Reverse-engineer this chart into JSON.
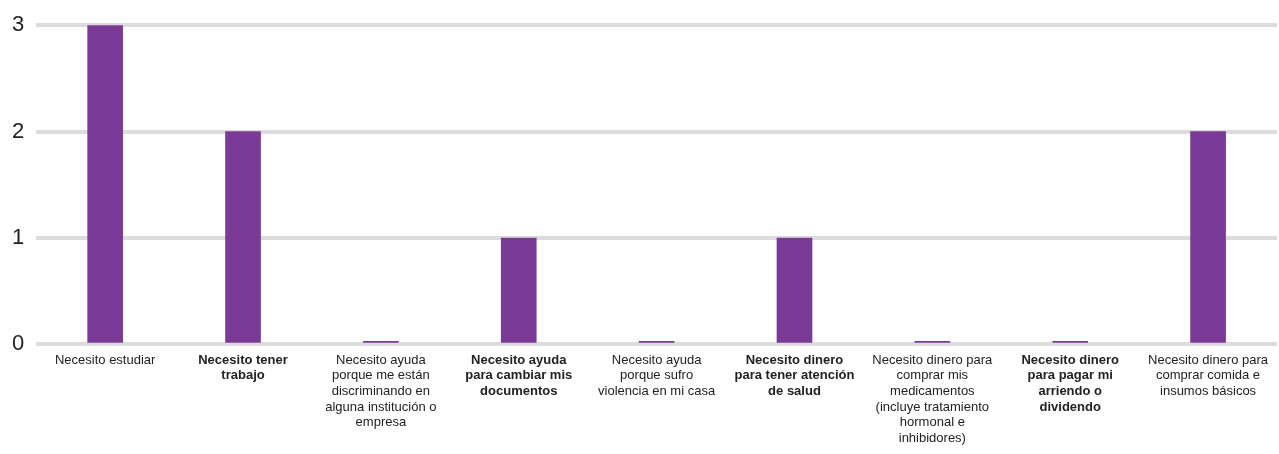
{
  "chart_data": {
    "type": "bar",
    "categories": [
      "Necesito estudiar",
      "Necesito tener trabajo",
      "Necesito ayuda porque me están discriminando en alguna institución o empresa",
      "Necesito ayuda para cambiar mis documentos",
      "Necesito ayuda porque sufro violencia en mi casa",
      "Necesito dinero para tener atención de salud",
      "Necesito dinero para comprar mis medicamentos (incluye tratamiento hormonal e inhibidores)",
      "Necesito dinero para pagar mi arriendo o dividendo",
      "Necesito dinero para comprar comida e insumos básicos"
    ],
    "values": [
      3,
      2,
      0.03,
      1,
      0.03,
      1,
      0.03,
      0.03,
      2
    ],
    "color": "#7b3a96",
    "ylim": [
      0,
      3
    ],
    "yticks": [
      0,
      1,
      2,
      3
    ],
    "grid": "y",
    "legend": false
  }
}
